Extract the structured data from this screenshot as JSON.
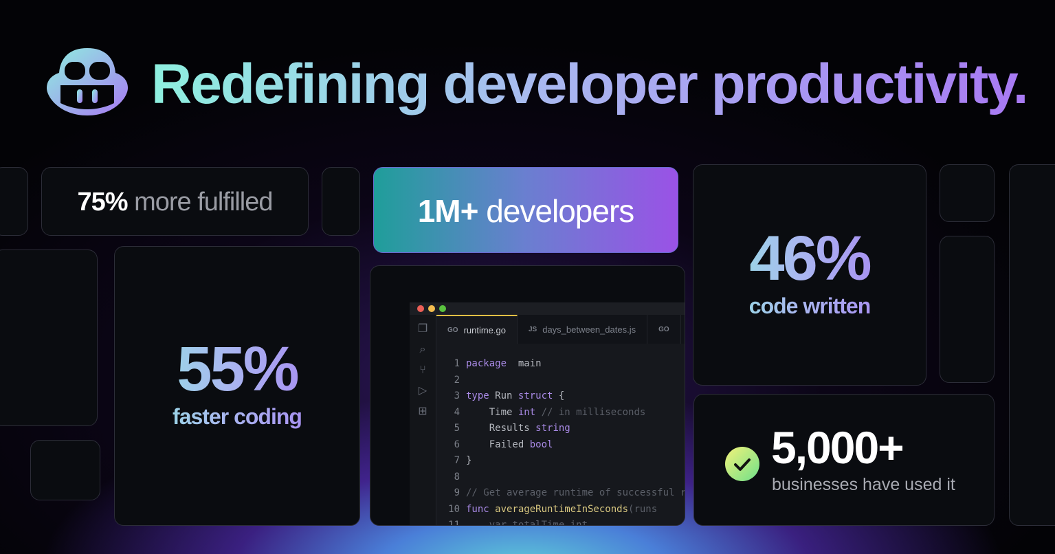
{
  "headline": "Redefining developer productivity.",
  "logo": {
    "icon": "copilot-logo-icon"
  },
  "stats": {
    "fulfilled": {
      "value": "75%",
      "label": "more fulfilled"
    },
    "developers": {
      "value": "1M+",
      "label": "developers"
    },
    "code_written": {
      "value": "46%",
      "label": "code written"
    },
    "faster": {
      "value": "55%",
      "label": "faster coding"
    },
    "businesses": {
      "value": "5,000+",
      "label": "businesses have used it",
      "icon": "check-circle-icon"
    }
  },
  "editor": {
    "tabs": [
      {
        "icon": "GO",
        "label": "runtime.go",
        "active": true
      },
      {
        "icon": "JS",
        "label": "days_between_dates.js"
      },
      {
        "icon": "GO",
        "label": ""
      }
    ],
    "sidebar_icons": [
      "files-icon",
      "search-icon",
      "source-control-icon",
      "run-debug-icon",
      "extensions-icon"
    ],
    "lines": [
      [
        [
          "kw",
          "package"
        ],
        [
          "",
          "  main"
        ]
      ],
      [],
      [
        [
          "kw",
          "type"
        ],
        [
          "",
          " Run "
        ],
        [
          "kw",
          "struct"
        ],
        [
          "",
          " {"
        ]
      ],
      [
        [
          "",
          "    Time "
        ],
        [
          "kw",
          "int"
        ],
        [
          "cm",
          " // in milliseconds"
        ]
      ],
      [
        [
          "",
          "    Results "
        ],
        [
          "kw",
          "string"
        ]
      ],
      [
        [
          "",
          "    Failed "
        ],
        [
          "kw",
          "bool"
        ]
      ],
      [
        [
          "",
          "}"
        ]
      ],
      [],
      [
        [
          "cm",
          "// Get average runtime of successful runs"
        ]
      ],
      [
        [
          "kw",
          "func"
        ],
        [
          "fn",
          " averageRuntimeInSeconds"
        ],
        [
          "cm",
          "(runs"
        ]
      ],
      [
        [
          "cm",
          "    var totalTime int"
        ]
      ]
    ]
  },
  "colors": {
    "accent_teal": "#8ef0df",
    "accent_purple": "#a879f3"
  }
}
